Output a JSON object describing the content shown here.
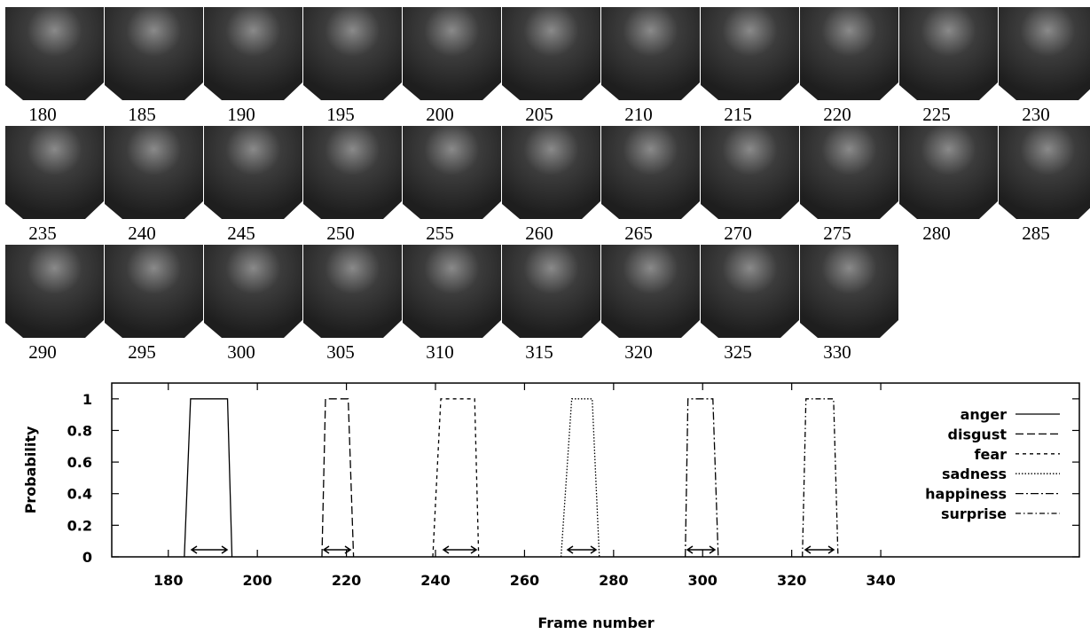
{
  "thumbnails": [
    180,
    185,
    190,
    195,
    200,
    205,
    210,
    215,
    220,
    225,
    230,
    235,
    240,
    245,
    250,
    255,
    260,
    265,
    270,
    275,
    280,
    285,
    290,
    295,
    300,
    305,
    310,
    315,
    320,
    325,
    330
  ],
  "chart_data": {
    "type": "line",
    "xlabel": "Frame number",
    "ylabel": "Probability",
    "xlim": [
      167.3,
      384.6
    ],
    "xticks": [
      180,
      200,
      220,
      240,
      260,
      280,
      300,
      320,
      340
    ],
    "ylim": [
      0,
      1.1
    ],
    "yticks": [
      0,
      0.2,
      0.4,
      0.6,
      0.8,
      1
    ],
    "legend": "right",
    "series": [
      {
        "name": "anger",
        "color": "#000000",
        "dash": "none",
        "x": [
          183.6,
          185,
          193.3,
          194.3
        ],
        "values": [
          0,
          1,
          1,
          0
        ]
      },
      {
        "name": "disgust",
        "color": "#000000",
        "dash": "9 4",
        "x": [
          214.5,
          215.3,
          220.4,
          221.6
        ],
        "values": [
          0,
          1,
          1,
          0
        ]
      },
      {
        "name": "fear",
        "color": "#000000",
        "dash": "4 4",
        "x": [
          239.4,
          241.2,
          248.8,
          249.7
        ],
        "values": [
          0,
          1,
          1,
          0
        ]
      },
      {
        "name": "sadness",
        "color": "#000000",
        "dash": "1.5 2",
        "x": [
          268.2,
          270.6,
          275.2,
          276.8
        ],
        "values": [
          0,
          1,
          1,
          0
        ]
      },
      {
        "name": "happiness",
        "color": "#000000",
        "dash": "9 3 2 3",
        "x": [
          296.1,
          296.7,
          302.3,
          303.5
        ],
        "values": [
          0,
          1,
          1,
          0
        ]
      },
      {
        "name": "surprise",
        "color": "#000000",
        "dash": "6 3 1.5 3",
        "x": [
          322.4,
          323.2,
          329.4,
          330.4
        ],
        "values": [
          0,
          1,
          1,
          0
        ]
      }
    ]
  }
}
